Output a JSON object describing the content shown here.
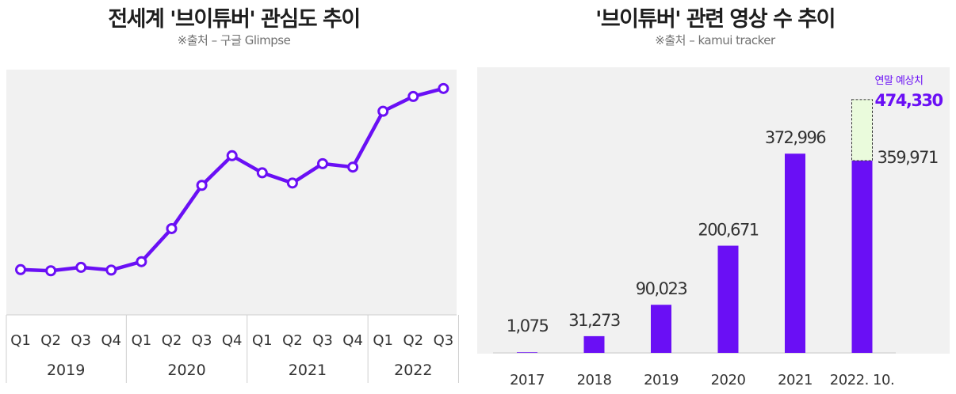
{
  "colors": {
    "accent": "#6a0ff5",
    "plot_bg": "#f1f1f1",
    "forecast_fill": "#eafbdc",
    "text": "#333333"
  },
  "left": {
    "title": "전세계 '브이튜버' 관심도 추이",
    "source": "※출처 – 구글 Glimpse"
  },
  "right": {
    "title": "'브이튜버' 관련 영상 수 추이",
    "source": "※출처 – kamui tracker"
  },
  "chart_data": [
    {
      "type": "line",
      "title": "전세계 '브이튜버' 관심도 추이",
      "subtitle": "※출처 – 구글 Glimpse",
      "quarter_labels": [
        "Q1",
        "Q2",
        "Q3",
        "Q4",
        "Q1",
        "Q2",
        "Q3",
        "Q4",
        "Q1",
        "Q2",
        "Q3",
        "Q4",
        "Q1",
        "Q2",
        "Q3"
      ],
      "year_groups": [
        {
          "label": "2019",
          "quarters": 4
        },
        {
          "label": "2020",
          "quarters": 4
        },
        {
          "label": "2021",
          "quarters": 4
        },
        {
          "label": "2022",
          "quarters": 3
        }
      ],
      "series": [
        {
          "values": [
            15,
            14.5,
            16,
            14.8,
            18.5,
            33,
            52,
            65,
            57.5,
            53,
            61.5,
            60,
            84.5,
            91,
            94.5
          ]
        }
      ],
      "ylim": [
        0,
        100
      ],
      "y_axis_shown": false,
      "grid": false,
      "markers": "hollow-circle"
    },
    {
      "type": "bar",
      "title": "'브이튜버' 관련 영상 수 추이",
      "subtitle": "※출처 – kamui tracker",
      "categories": [
        "2017",
        "2018",
        "2019",
        "2020",
        "2021",
        "2022. 10."
      ],
      "values": [
        1075,
        31273,
        90023,
        200671,
        372996,
        359971
      ],
      "value_labels": [
        "1,075",
        "31,273",
        "90,023",
        "200,671",
        "372,996",
        "359,971"
      ],
      "forecast": {
        "category": "2022. 10.",
        "label": "연말 예상치",
        "value": 474330,
        "value_label": "474,330"
      },
      "ylim": [
        0,
        520000
      ],
      "y_axis_shown": false,
      "grid": false
    }
  ]
}
